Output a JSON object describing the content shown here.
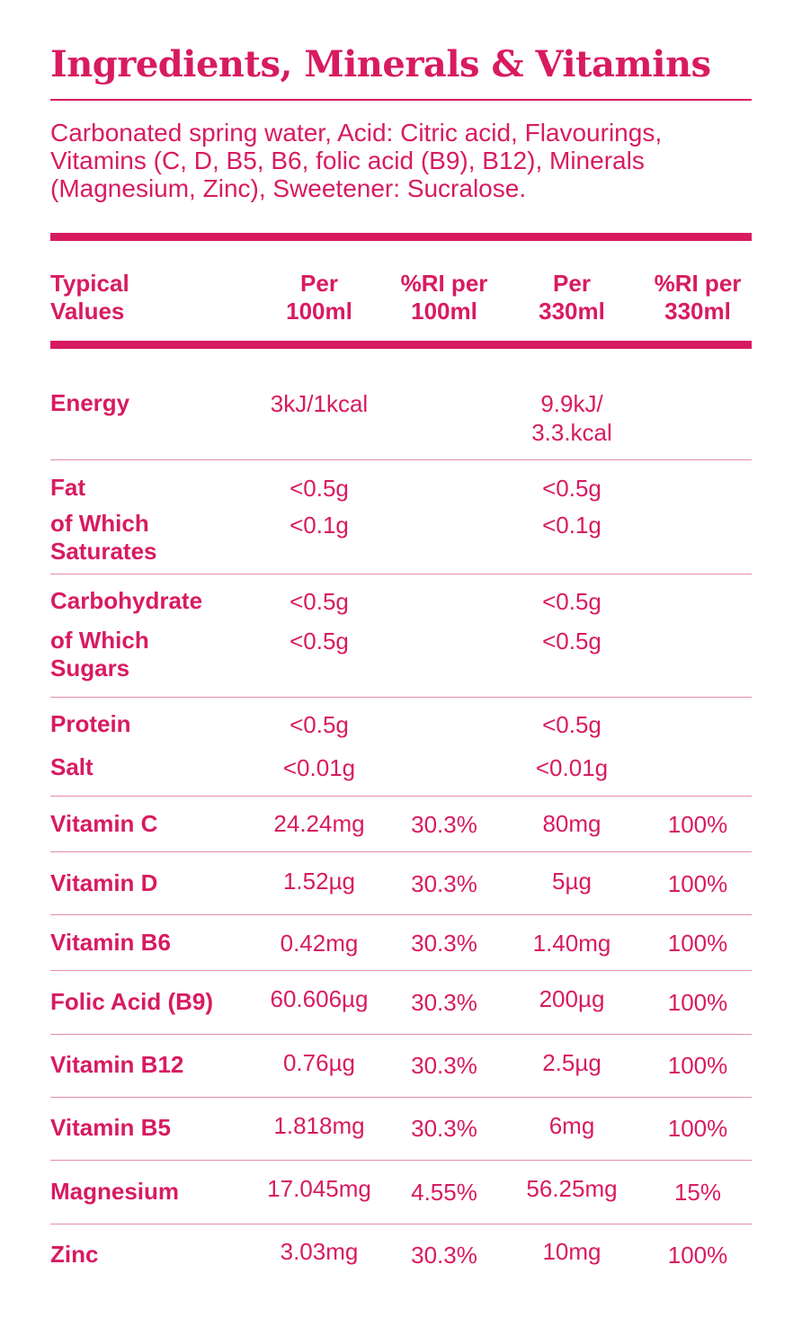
{
  "title": "Ingredients, Minerals & Vitamins",
  "ingredients": "Carbonated spring water, Acid: Citric acid, Flavourings, Vitamins (C, D, B5, B6, folic acid (B9), B12), Minerals (Magnesium, Zinc), Sweetener: Sucralose.",
  "headers": {
    "label": [
      "Typical",
      "Values"
    ],
    "per100": [
      "Per",
      "100ml"
    ],
    "ri100": [
      "%RI per",
      "100ml"
    ],
    "per330": [
      "Per",
      "330ml"
    ],
    "ri330": [
      "%RI per",
      "330ml"
    ]
  },
  "rows": {
    "energy": {
      "label": "Energy",
      "per100": "3kJ/1kcal",
      "per330": [
        "9.9kJ/",
        "3.3.kcal"
      ]
    },
    "fat": {
      "label": "Fat",
      "per100": "<0.5g",
      "per330": "<0.5g"
    },
    "saturates": {
      "label": [
        "of Which",
        "Saturates"
      ],
      "per100": "<0.1g",
      "per330": "<0.1g"
    },
    "carbohydrate": {
      "label": "Carbohydrate",
      "per100": "<0.5g",
      "per330": "<0.5g"
    },
    "sugars": {
      "label": [
        "of Which",
        "Sugars"
      ],
      "per100": "<0.5g",
      "per330": "<0.5g"
    },
    "protein": {
      "label": "Protein",
      "per100": "<0.5g",
      "per330": "<0.5g"
    },
    "salt": {
      "label": "Salt",
      "per100": "<0.01g",
      "per330": "<0.01g"
    },
    "vitamin_c": {
      "label": "Vitamin C",
      "per100": "24.24mg",
      "ri100": "30.3%",
      "per330": "80mg",
      "ri330": "100%"
    },
    "vitamin_d": {
      "label": "Vitamin D",
      "per100": "1.52µg",
      "ri100": "30.3%",
      "per330": "5µg",
      "ri330": "100%"
    },
    "vitamin_b6": {
      "label": "Vitamin B6",
      "per100": "0.42mg",
      "ri100": "30.3%",
      "per330": "1.40mg",
      "ri330": "100%"
    },
    "folic_acid": {
      "label": "Folic Acid (B9)",
      "per100": "60.606µg",
      "ri100": "30.3%",
      "per330": "200µg",
      "ri330": "100%"
    },
    "vitamin_b12": {
      "label": "Vitamin B12",
      "per100": "0.76µg",
      "ri100": "30.3%",
      "per330": "2.5µg",
      "ri330": "100%"
    },
    "vitamin_b5": {
      "label": "Vitamin B5",
      "per100": "1.818mg",
      "ri100": "30.3%",
      "per330": "6mg",
      "ri330": "100%"
    },
    "magnesium": {
      "label": "Magnesium",
      "per100": "17.045mg",
      "ri100": "4.55%",
      "per330": "56.25mg",
      "ri330": "15%"
    },
    "zinc": {
      "label": "Zinc",
      "per100": "3.03mg",
      "ri100": "30.3%",
      "per330": "10mg",
      "ri330": "100%"
    }
  },
  "colors": {
    "accent": "#d81b60",
    "divider": "#e58bb0",
    "background": "#ffffff"
  }
}
